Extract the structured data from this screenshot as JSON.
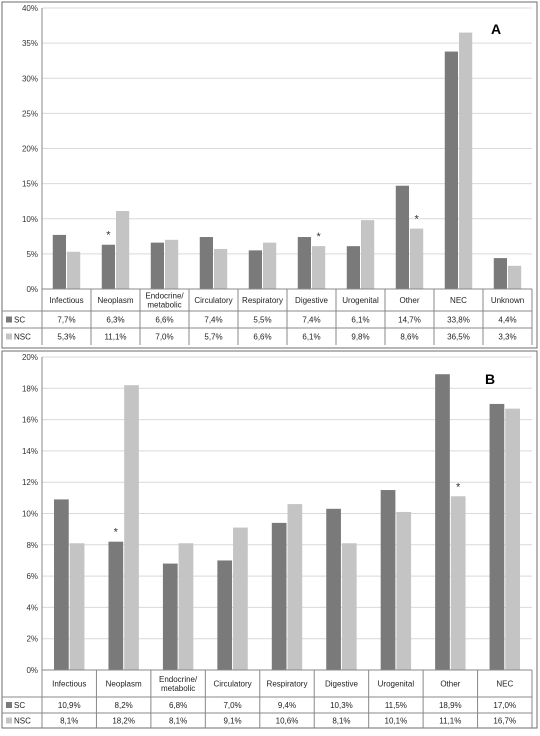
{
  "chart_data": [
    {
      "panel_label": "A",
      "type": "bar",
      "categories": [
        "Infectious",
        "Neoplasm",
        [
          "Endocrine/",
          "metabolic"
        ],
        "Circulatory",
        "Respiratory",
        "Digestive",
        "Urogenital",
        "Other",
        "NEC",
        "Unknown"
      ],
      "ylim": [
        0,
        40
      ],
      "yticks": [
        "0%",
        "5%",
        "10%",
        "15%",
        "20%",
        "25%",
        "30%",
        "35%",
        "40%"
      ],
      "series": [
        {
          "name": "SC",
          "color": "#7a7a7a",
          "values": [
            7.7,
            6.3,
            6.6,
            7.4,
            5.5,
            7.4,
            6.1,
            14.7,
            33.8,
            4.4
          ],
          "labels": [
            "7,7%",
            "6,3%",
            "6,6%",
            "7,4%",
            "5,5%",
            "7,4%",
            "6,1%",
            "14,7%",
            "33,8%",
            "4,4%"
          ]
        },
        {
          "name": "NSC",
          "color": "#c4c4c4",
          "values": [
            5.3,
            11.1,
            7.0,
            5.7,
            6.6,
            6.1,
            9.8,
            8.6,
            36.5,
            3.3
          ],
          "labels": [
            "5,3%",
            "11,1%",
            "7,0%",
            "5,7%",
            "6,6%",
            "6,1%",
            "9,8%",
            "8,6%",
            "36,5%",
            "3,3%"
          ]
        }
      ],
      "significance_markers": [
        {
          "category_index": 1,
          "series": "SC",
          "symbol": "*"
        },
        {
          "category_index": 5,
          "series": "NSC",
          "symbol": "*"
        },
        {
          "category_index": 7,
          "series": "NSC",
          "symbol": "*"
        }
      ],
      "grid": true,
      "legend": "table below chart"
    },
    {
      "panel_label": "B",
      "type": "bar",
      "categories": [
        "Infectious",
        "Neoplasm",
        [
          "Endocrine/",
          "metabolic"
        ],
        "Circulatory",
        "Respiratory",
        "Digestive",
        "Urogenital",
        "Other",
        "NEC"
      ],
      "ylim": [
        0,
        20
      ],
      "yticks": [
        "0%",
        "2%",
        "4%",
        "6%",
        "8%",
        "10%",
        "12%",
        "14%",
        "16%",
        "18%",
        "20%"
      ],
      "series": [
        {
          "name": "SC",
          "color": "#7a7a7a",
          "values": [
            10.9,
            8.2,
            6.8,
            7.0,
            9.4,
            10.3,
            11.5,
            18.9,
            17.0
          ],
          "labels": [
            "10,9%",
            "8,2%",
            "6,8%",
            "7,0%",
            "9,4%",
            "10,3%",
            "11,5%",
            "18,9%",
            "17,0%"
          ]
        },
        {
          "name": "NSC",
          "color": "#c4c4c4",
          "values": [
            8.1,
            18.2,
            8.1,
            9.1,
            10.6,
            8.1,
            10.1,
            11.1,
            16.7
          ],
          "labels": [
            "8,1%",
            "18,2%",
            "8,1%",
            "9,1%",
            "10,6%",
            "8,1%",
            "10,1%",
            "11,1%",
            "16,7%"
          ]
        }
      ],
      "significance_markers": [
        {
          "category_index": 1,
          "series": "SC",
          "symbol": "*"
        },
        {
          "category_index": 7,
          "series": "NSC",
          "symbol": "*"
        }
      ],
      "grid": true,
      "legend": "table below chart"
    }
  ]
}
